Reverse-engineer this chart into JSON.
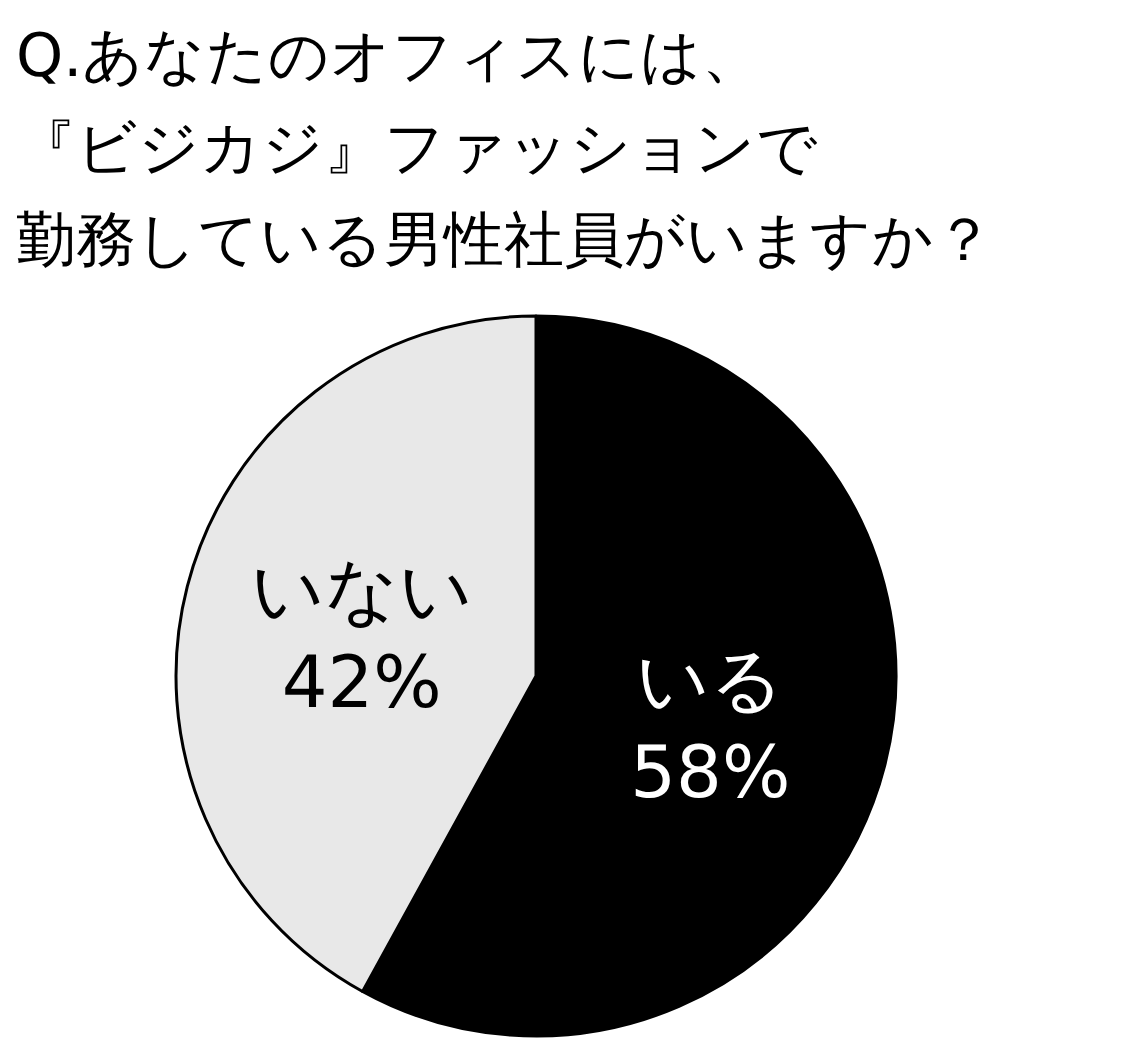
{
  "chart_data": {
    "type": "pie",
    "title": "Q.あなたのオフィスには、",
    "subtitle": "『ビジカジ』ファッションで",
    "annotations": [
      "勤務している男性社員がいますか？"
    ],
    "categories": [
      "いる",
      "いない"
    ],
    "values": [
      58,
      42
    ],
    "colors": [
      "#000000",
      "#e8e8e8"
    ],
    "value_labels": [
      "58%",
      "42%"
    ]
  }
}
